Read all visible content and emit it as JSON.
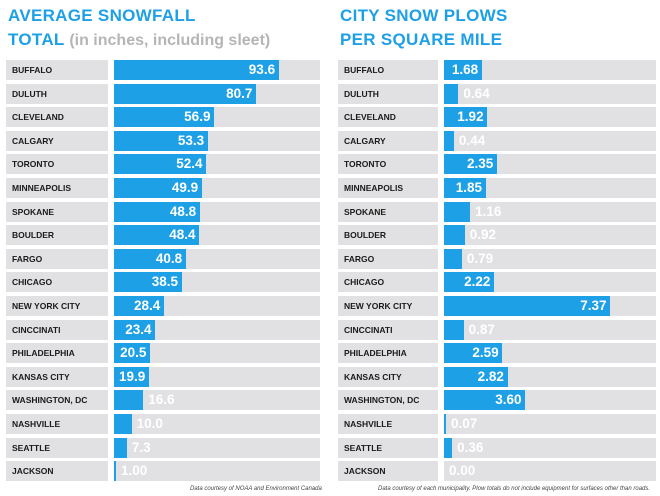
{
  "charts": [
    {
      "title_line1": "AVERAGE SNOWFALL",
      "title_line2": "TOTAL",
      "title_sub": "(in inches, including sleet)",
      "source": "Data courtesy of NOAA and Environment Canada",
      "bar_color": "#1ea0e6",
      "title_color": "#1ea0e6",
      "chart_data": {
        "type": "bar",
        "orientation": "horizontal",
        "categories": [
          "BUFFALO",
          "DULUTH",
          "CLEVELAND",
          "CALGARY",
          "TORONTO",
          "MINNEAPOLIS",
          "SPOKANE",
          "BOULDER",
          "FARGO",
          "CHICAGO",
          "NEW YORK CITY",
          "CINCCINATI",
          "PHILADELPHIA",
          "KANSAS CITY",
          "WASHINGTON, DC",
          "NASHVILLE",
          "SEATTLE",
          "JACKSON"
        ],
        "values": [
          93.6,
          80.7,
          56.9,
          53.3,
          52.4,
          49.9,
          48.8,
          48.4,
          40.8,
          38.5,
          28.4,
          23.4,
          20.5,
          19.9,
          16.6,
          10.0,
          7.3,
          1.0
        ],
        "labels": [
          "93.6",
          "80.7",
          "56.9",
          "53.3",
          "52.4",
          "49.9",
          "48.8",
          "48.4",
          "40.8",
          "38.5",
          "28.4",
          "23.4",
          "20.5",
          "19.9",
          "16.6",
          "10.0",
          "7.3",
          "1.00"
        ],
        "xlim": [
          0,
          117
        ]
      }
    },
    {
      "title_line1": "CITY SNOW PLOWS",
      "title_line2": "PER SQUARE MILE",
      "title_sub": "",
      "source": "Data courtesy of each municipality. Plow totals do not include equipment for surfaces other than roads.",
      "bar_color": "#1ea0e6",
      "title_color": "#1ea0e6",
      "chart_data": {
        "type": "bar",
        "orientation": "horizontal",
        "categories": [
          "BUFFALO",
          "DULUTH",
          "CLEVELAND",
          "CALGARY",
          "TORONTO",
          "MINNEAPOLIS",
          "SPOKANE",
          "BOULDER",
          "FARGO",
          "CHICAGO",
          "NEW YORK CITY",
          "CINCCINATI",
          "PHILADELPHIA",
          "KANSAS CITY",
          "WASHINGTON, DC",
          "NASHVILLE",
          "SEATTLE",
          "JACKSON"
        ],
        "values": [
          1.68,
          0.64,
          1.92,
          0.44,
          2.35,
          1.85,
          1.16,
          0.92,
          0.79,
          2.22,
          7.37,
          0.87,
          2.59,
          2.82,
          3.6,
          0.07,
          0.36,
          0.0
        ],
        "labels": [
          "1.68",
          "0.64",
          "1.92",
          "0.44",
          "2.35",
          "1.85",
          "1.16",
          "0.92",
          "0.79",
          "2.22",
          "7.37",
          "0.87",
          "2.59",
          "2.82",
          "3.60",
          "0.07",
          "0.36",
          "0.00"
        ],
        "xlim": [
          0,
          9.4
        ]
      }
    }
  ]
}
